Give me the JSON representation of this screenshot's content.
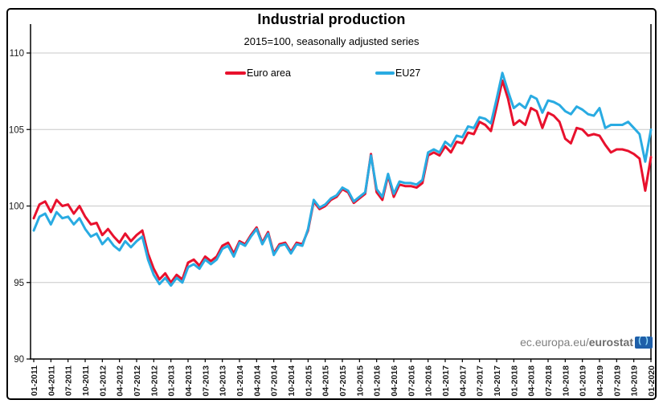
{
  "chart": {
    "watermark_prefix": "ec.europa.eu/",
    "watermark_bold": "eurostat",
    "logo_name": "eurostat-logo"
  },
  "chart_data": {
    "type": "line",
    "title": "Industrial production",
    "subtitle": "2015=100, seasonally adjusted series",
    "x_unit": "month",
    "x_start": "01-2011",
    "x_end": "01-2020",
    "x_tick_labels": [
      "01-2011",
      "04-2011",
      "07-2011",
      "10-2011",
      "01-2012",
      "04-2012",
      "07-2012",
      "10-2012",
      "01-2013",
      "04-2013",
      "07-2013",
      "10-2013",
      "01-2014",
      "04-2014",
      "07-2014",
      "10-2014",
      "01-2015",
      "04-2015",
      "07-2015",
      "10-2015",
      "01-2016",
      "04-2016",
      "07-2016",
      "10-2016",
      "01-2017",
      "04-2017",
      "07-2017",
      "10-2017",
      "01-2018",
      "04-2018",
      "07-2018",
      "10-2018",
      "01-2019",
      "04-2019",
      "07-2019",
      "10-2019",
      "01-2020"
    ],
    "x_ticks_every_n_months": 3,
    "y_ticks": [
      90,
      95,
      100,
      105,
      110
    ],
    "ylim": [
      90,
      111.9
    ],
    "grid": true,
    "legend_position": "top-inside",
    "colors": {
      "grid": "#c8c8c8",
      "axis": "#000000",
      "tick_label": "#1a1a1a"
    },
    "series": [
      {
        "name": "Euro area",
        "color": "#e8112d",
        "values": [
          99.2,
          100.1,
          100.3,
          99.6,
          100.4,
          100.0,
          100.1,
          99.5,
          100.0,
          99.3,
          98.8,
          98.9,
          98.1,
          98.5,
          98.0,
          97.6,
          98.2,
          97.7,
          98.1,
          98.4,
          96.9,
          95.9,
          95.2,
          95.6,
          95.0,
          95.5,
          95.2,
          96.3,
          96.5,
          96.1,
          96.7,
          96.4,
          96.7,
          97.4,
          97.6,
          96.9,
          97.7,
          97.5,
          98.1,
          98.6,
          97.6,
          98.3,
          96.9,
          97.5,
          97.6,
          97.0,
          97.6,
          97.5,
          98.4,
          100.3,
          99.8,
          100.0,
          100.4,
          100.6,
          101.1,
          100.9,
          100.2,
          100.5,
          100.8,
          103.4,
          100.9,
          100.4,
          102.0,
          100.6,
          101.4,
          101.3,
          101.3,
          101.2,
          101.5,
          103.3,
          103.5,
          103.3,
          103.9,
          103.5,
          104.2,
          104.1,
          104.8,
          104.7,
          105.5,
          105.3,
          104.9,
          106.5,
          108.2,
          107.0,
          105.3,
          105.6,
          105.3,
          106.4,
          106.2,
          105.1,
          106.1,
          105.9,
          105.5,
          104.4,
          104.1,
          105.1,
          105.0,
          104.6,
          104.7,
          104.6,
          104.0,
          103.5,
          103.7,
          103.7,
          103.6,
          103.4,
          103.1,
          101.0,
          103.2
        ]
      },
      {
        "name": "EU27",
        "color": "#29abe2",
        "values": [
          98.4,
          99.3,
          99.5,
          98.8,
          99.6,
          99.2,
          99.3,
          98.8,
          99.2,
          98.5,
          98.0,
          98.2,
          97.5,
          97.9,
          97.4,
          97.1,
          97.7,
          97.3,
          97.7,
          98.0,
          96.5,
          95.5,
          94.9,
          95.3,
          94.8,
          95.3,
          95.0,
          96.0,
          96.2,
          95.9,
          96.5,
          96.2,
          96.5,
          97.2,
          97.4,
          96.7,
          97.6,
          97.4,
          98.0,
          98.5,
          97.5,
          98.2,
          96.8,
          97.4,
          97.5,
          96.9,
          97.5,
          97.4,
          98.5,
          100.4,
          99.9,
          100.1,
          100.5,
          100.7,
          101.2,
          101.0,
          100.3,
          100.6,
          100.9,
          103.3,
          101.1,
          100.6,
          102.1,
          100.8,
          101.6,
          101.5,
          101.5,
          101.4,
          101.7,
          103.5,
          103.7,
          103.5,
          104.2,
          103.9,
          104.6,
          104.5,
          105.2,
          105.1,
          105.8,
          105.7,
          105.4,
          107.0,
          108.7,
          107.5,
          106.4,
          106.7,
          106.4,
          107.2,
          107.0,
          106.1,
          106.9,
          106.8,
          106.6,
          106.2,
          106.0,
          106.5,
          106.3,
          106.0,
          105.9,
          106.4,
          105.1,
          105.3,
          105.3,
          105.3,
          105.5,
          105.1,
          104.7,
          102.9,
          105.0
        ]
      }
    ]
  }
}
